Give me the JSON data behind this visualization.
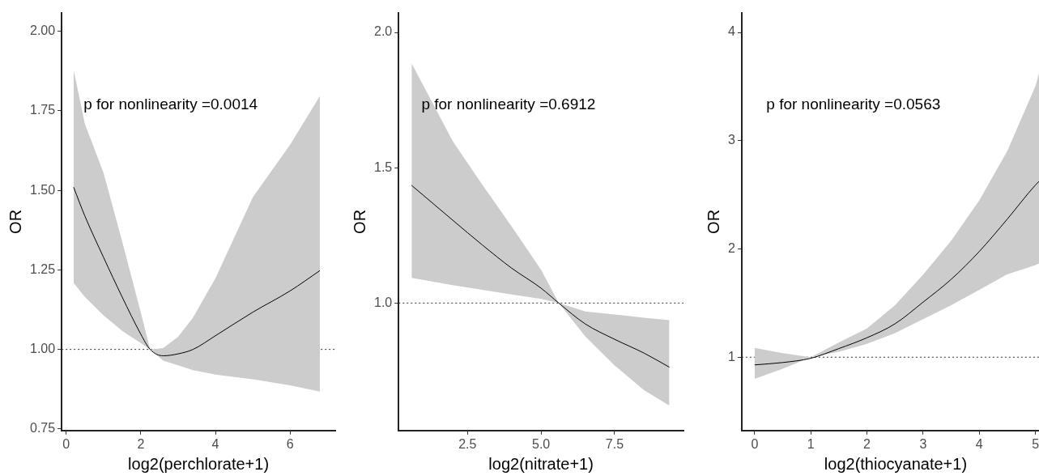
{
  "chart_data": [
    {
      "type": "line",
      "xlabel": "log2(perchlorate+1)",
      "ylabel": "OR",
      "annotations": [
        "p for nonlinearity =0.0014"
      ],
      "xlim": [
        -0.12,
        7.21
      ],
      "ylim": [
        0.745,
        2.058
      ],
      "xticks": [
        0,
        2,
        4,
        6
      ],
      "yticks": [
        {
          "value": 0.75,
          "label": "0.75"
        },
        {
          "value": 1,
          "label": "1.00"
        },
        {
          "value": 1.25,
          "label": "1.25"
        },
        {
          "value": 1.5,
          "label": "1.50"
        },
        {
          "value": 1.75,
          "label": "1.75"
        },
        {
          "value": 2,
          "label": "2.00"
        }
      ],
      "ref_lines": [
        {
          "axis": "y",
          "value": 1,
          "label": null,
          "color": "#333333",
          "line_style": "dotted"
        }
      ],
      "series": [
        {
          "color": "#000000",
          "x": [
            0.2,
            0.5,
            1,
            1.5,
            2,
            2.25,
            2.6,
            3,
            3.4,
            4,
            5,
            6,
            6.8
          ],
          "values": [
            1.51,
            1.42,
            1.29,
            1.165,
            1.048,
            1.0,
            0.98,
            0.986,
            1.0,
            1.043,
            1.117,
            1.184,
            1.248
          ],
          "lower": [
            1.209,
            1.165,
            1.107,
            1.058,
            1.02,
            1.0,
            0.965,
            0.95,
            0.935,
            0.921,
            0.906,
            0.887,
            0.867
          ],
          "upper": [
            1.88,
            1.71,
            1.556,
            1.34,
            1.116,
            1.0,
            1.004,
            1.04,
            1.1,
            1.224,
            1.478,
            1.644,
            1.797
          ]
        }
      ]
    },
    {
      "type": "line",
      "xlabel": "log2(nitrate+1)",
      "ylabel": "OR",
      "annotations": [
        "p for nonlinearity =0.6912"
      ],
      "xlim": [
        0.16,
        9.84
      ],
      "ylim": [
        0.529,
        2.072
      ],
      "xticks": [
        2.5,
        {
          "value": 5,
          "label": "5.0"
        },
        7.5
      ],
      "yticks": [
        {
          "value": 1,
          "label": "1.0"
        },
        1.5,
        {
          "value": 2,
          "label": "2.0"
        }
      ],
      "ref_lines": [
        {
          "axis": "y",
          "value": 1,
          "label": null,
          "color": "#333333",
          "line_style": "dotted"
        }
      ],
      "series": [
        {
          "color": "#000000",
          "x": [
            0.6,
            2,
            3,
            4,
            5,
            5.6,
            6.5,
            7.5,
            8.5,
            9.36
          ],
          "values": [
            1.435,
            1.306,
            1.215,
            1.129,
            1.055,
            1.0,
            0.923,
            0.866,
            0.815,
            0.763
          ],
          "lower": [
            1.093,
            1.066,
            1.049,
            1.032,
            1.015,
            1.0,
            0.877,
            0.769,
            0.678,
            0.621
          ],
          "upper": [
            1.886,
            1.598,
            1.438,
            1.283,
            1.123,
            1.0,
            0.969,
            0.958,
            0.946,
            0.937
          ]
        }
      ]
    },
    {
      "type": "line",
      "xlabel": "log2(thiocyanate+1)",
      "ylabel": "OR",
      "annotations": [
        "p for nonlinearity =0.0563"
      ],
      "xlim": [
        -0.23,
        5.25
      ],
      "ylim": [
        0.323,
        4.18
      ],
      "xticks": [
        0,
        1,
        2,
        3,
        4,
        5
      ],
      "yticks": [
        1,
        2,
        3,
        4
      ],
      "ref_lines": [
        {
          "axis": "y",
          "value": 1,
          "label": null,
          "color": "#333333",
          "line_style": "dotted"
        }
      ],
      "series": [
        {
          "color": "#000000",
          "x": [
            0,
            0.5,
            1,
            1.5,
            2,
            2.5,
            3,
            3.5,
            4,
            4.5,
            5,
            5.17
          ],
          "values": [
            0.929,
            0.951,
            0.99,
            1.08,
            1.18,
            1.309,
            1.509,
            1.72,
            1.977,
            2.277,
            2.591,
            2.677
          ],
          "lower": [
            0.8,
            0.894,
            1.0,
            1.051,
            1.123,
            1.223,
            1.351,
            1.48,
            1.623,
            1.766,
            1.851,
            1.894
          ],
          "upper": [
            1.086,
            1.037,
            1.0,
            1.137,
            1.266,
            1.48,
            1.763,
            2.077,
            2.449,
            2.906,
            3.506,
            3.823
          ]
        }
      ]
    }
  ]
}
